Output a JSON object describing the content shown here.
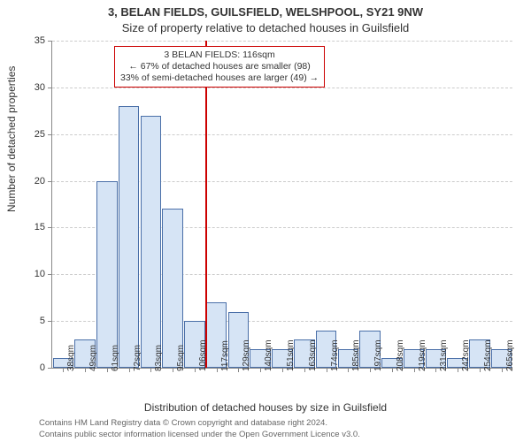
{
  "title_main": "3, BELAN FIELDS, GUILSFIELD, WELSHPOOL, SY21 9NW",
  "title_sub": "Size of property relative to detached houses in Guilsfield",
  "ylabel": "Number of detached properties",
  "xlabel": "Distribution of detached houses by size in Guilsfield",
  "footer_line1": "Contains HM Land Registry data © Crown copyright and database right 2024.",
  "footer_line2": "Contains public sector information licensed under the Open Government Licence v3.0.",
  "chart": {
    "type": "histogram",
    "ymax": 35,
    "ytick_step": 5,
    "bar_fill": "#d6e4f5",
    "bar_stroke": "#4a6fa8",
    "grid_color": "#cccccc",
    "axis_color": "#888888",
    "marker_color": "#cc0000",
    "marker_index": 7,
    "xticks": [
      "38sqm",
      "49sqm",
      "61sqm",
      "72sqm",
      "83sqm",
      "95sqm",
      "106sqm",
      "117sqm",
      "129sqm",
      "140sqm",
      "151sqm",
      "163sqm",
      "174sqm",
      "185sqm",
      "197sqm",
      "208sqm",
      "219sqm",
      "231sqm",
      "242sqm",
      "254sqm",
      "265sqm"
    ],
    "values": [
      1,
      3,
      20,
      28,
      27,
      17,
      5,
      7,
      6,
      2,
      2,
      3,
      4,
      2,
      4,
      1,
      2,
      2,
      1,
      3,
      2
    ],
    "label_fontsize": 12,
    "tick_fontsize": 11,
    "title_fontsize": 13
  },
  "annot": {
    "line1": "3 BELAN FIELDS: 116sqm",
    "line2": "← 67% of detached houses are smaller (98)",
    "line3": "33% of semi-detached houses are larger (49) →",
    "border_color": "#cc0000"
  }
}
